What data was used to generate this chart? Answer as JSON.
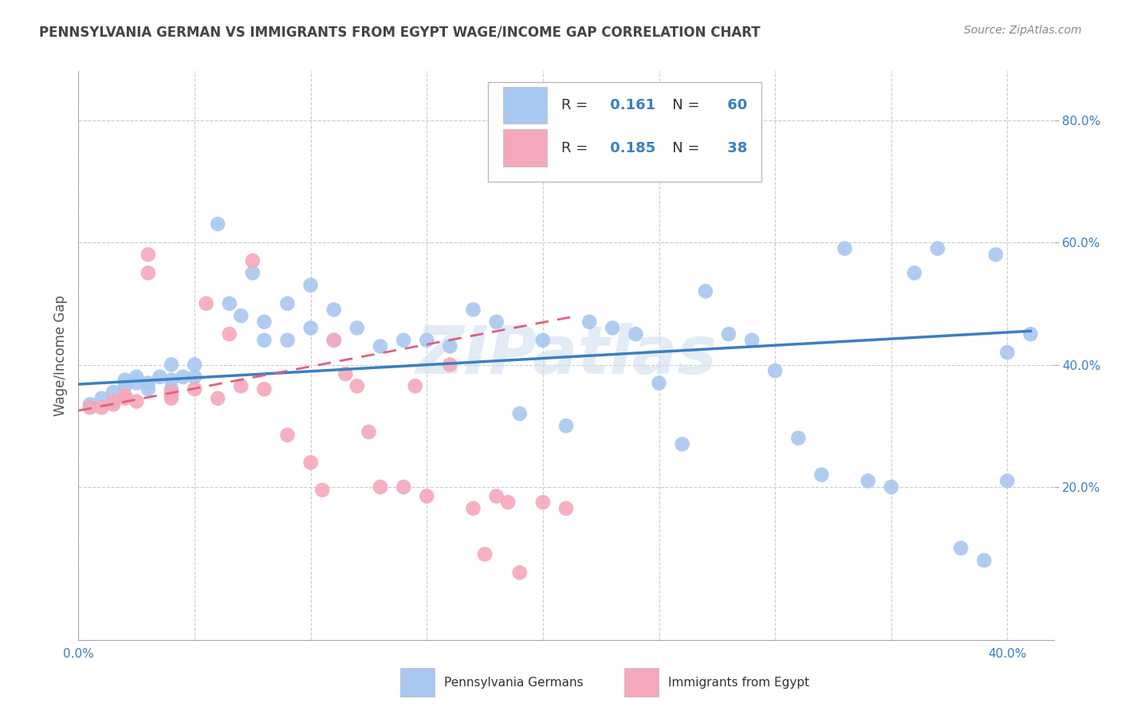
{
  "title": "PENNSYLVANIA GERMAN VS IMMIGRANTS FROM EGYPT WAGE/INCOME GAP CORRELATION CHART",
  "source": "Source: ZipAtlas.com",
  "ylabel": "Wage/Income Gap",
  "xlabel": "",
  "xlim": [
    0.0,
    0.42
  ],
  "ylim": [
    -0.05,
    0.88
  ],
  "blue_color": "#a8c8f0",
  "pink_color": "#f5a8bc",
  "blue_line_color": "#3a7fc1",
  "pink_line_color": "#e06080",
  "title_color": "#444444",
  "source_color": "#888888",
  "legend_R_color": "#3a7fc1",
  "legend_N_color": "#3a7fc1",
  "grid_color": "#cccccc",
  "background_color": "#ffffff",
  "watermark": "ZIPatlas",
  "R_blue": "0.161",
  "N_blue": "60",
  "R_pink": "0.185",
  "N_pink": "38",
  "blue_scatter_x": [
    0.005,
    0.01,
    0.015,
    0.02,
    0.02,
    0.025,
    0.025,
    0.03,
    0.03,
    0.035,
    0.04,
    0.04,
    0.04,
    0.045,
    0.05,
    0.05,
    0.06,
    0.065,
    0.07,
    0.075,
    0.08,
    0.08,
    0.09,
    0.09,
    0.1,
    0.1,
    0.11,
    0.11,
    0.12,
    0.13,
    0.14,
    0.15,
    0.16,
    0.17,
    0.18,
    0.19,
    0.2,
    0.21,
    0.22,
    0.23,
    0.24,
    0.25,
    0.26,
    0.27,
    0.28,
    0.29,
    0.3,
    0.31,
    0.32,
    0.33,
    0.34,
    0.35,
    0.36,
    0.37,
    0.38,
    0.39,
    0.395,
    0.4,
    0.4,
    0.41
  ],
  "blue_scatter_y": [
    0.335,
    0.345,
    0.355,
    0.365,
    0.375,
    0.38,
    0.37,
    0.37,
    0.36,
    0.38,
    0.375,
    0.36,
    0.4,
    0.38,
    0.4,
    0.38,
    0.63,
    0.5,
    0.48,
    0.55,
    0.47,
    0.44,
    0.5,
    0.44,
    0.53,
    0.46,
    0.49,
    0.44,
    0.46,
    0.43,
    0.44,
    0.44,
    0.43,
    0.49,
    0.47,
    0.32,
    0.44,
    0.3,
    0.47,
    0.46,
    0.45,
    0.37,
    0.27,
    0.52,
    0.45,
    0.44,
    0.39,
    0.28,
    0.22,
    0.59,
    0.21,
    0.2,
    0.55,
    0.59,
    0.1,
    0.08,
    0.58,
    0.42,
    0.21,
    0.45
  ],
  "pink_scatter_x": [
    0.005,
    0.01,
    0.015,
    0.015,
    0.02,
    0.02,
    0.025,
    0.03,
    0.03,
    0.04,
    0.04,
    0.04,
    0.05,
    0.055,
    0.06,
    0.065,
    0.07,
    0.075,
    0.08,
    0.09,
    0.1,
    0.105,
    0.11,
    0.115,
    0.12,
    0.125,
    0.13,
    0.14,
    0.145,
    0.15,
    0.16,
    0.17,
    0.175,
    0.18,
    0.185,
    0.19,
    0.2,
    0.21
  ],
  "pink_scatter_y": [
    0.33,
    0.33,
    0.335,
    0.34,
    0.345,
    0.35,
    0.34,
    0.58,
    0.55,
    0.345,
    0.35,
    0.355,
    0.36,
    0.5,
    0.345,
    0.45,
    0.365,
    0.57,
    0.36,
    0.285,
    0.24,
    0.195,
    0.44,
    0.385,
    0.365,
    0.29,
    0.2,
    0.2,
    0.365,
    0.185,
    0.4,
    0.165,
    0.09,
    0.185,
    0.175,
    0.06,
    0.175,
    0.165
  ],
  "blue_trend_x": [
    0.0,
    0.41
  ],
  "blue_trend_y": [
    0.368,
    0.455
  ],
  "pink_trend_x": [
    0.0,
    0.215
  ],
  "pink_trend_y": [
    0.325,
    0.48
  ]
}
